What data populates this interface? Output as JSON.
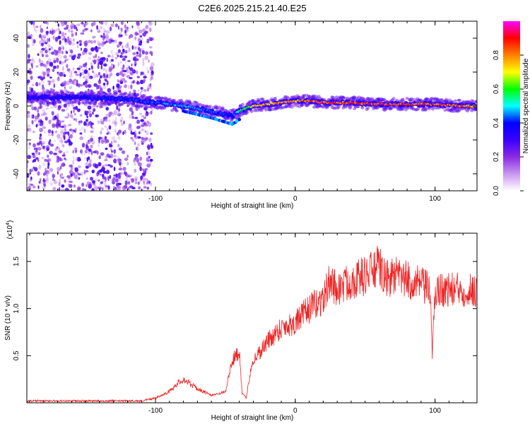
{
  "title": "C2E6.2025.215.21.40.E25",
  "chart_data": [
    {
      "type": "heatmap",
      "xlabel": "Height of straight line (km)",
      "ylabel": "Frequency (Hz)",
      "xlim": [
        -192,
        130
      ],
      "ylim": [
        -50,
        50
      ],
      "xticks": [
        -100,
        0,
        100
      ],
      "yticks": [
        -40,
        -20,
        0,
        20,
        40
      ],
      "colorbar": {
        "label": "Normalized spectral amplitude",
        "range": [
          0,
          1
        ],
        "ticks": [
          "0.0",
          "0.2",
          "0.4",
          "0.6",
          "0.8"
        ],
        "tick_values": [
          0,
          0.2,
          0.4,
          0.6,
          0.8
        ],
        "colors": [
          "#ffffff",
          "#c896f0",
          "#8a2be2",
          "#3a00ff",
          "#0000ff",
          "#00ffff",
          "#00ff00",
          "#ffff00",
          "#ff8000",
          "#ff0000",
          "#ff00ff"
        ]
      },
      "ridge": {
        "x": [
          -192,
          -150,
          -120,
          -100,
          -80,
          -60,
          -50,
          -45,
          -40,
          -30,
          -20,
          -10,
          0,
          10,
          20,
          40,
          60,
          80,
          100,
          120,
          130
        ],
        "freq": [
          5,
          5,
          4,
          2,
          0,
          -3,
          -5,
          -6,
          -3,
          0,
          1,
          2,
          3,
          3,
          2,
          2,
          1,
          1,
          1,
          0,
          0
        ],
        "amplitude": [
          0.35,
          0.4,
          0.42,
          0.45,
          0.5,
          0.45,
          0.42,
          0.4,
          0.55,
          0.75,
          0.85,
          0.8,
          0.82,
          0.85,
          0.9,
          0.88,
          0.9,
          0.92,
          0.9,
          0.85,
          0.8
        ]
      }
    },
    {
      "type": "line",
      "xlabel": "Height of straight line (km)",
      "ylabel": "SNR (10 * v/v)",
      "yscale_label": "(x10",
      "yscale_exp": "4",
      "xlim": [
        -192,
        130
      ],
      "ylim": [
        0,
        1.8
      ],
      "xticks": [
        -100,
        0,
        100
      ],
      "yticks": [
        0.5,
        1.0,
        1.5
      ],
      "ytick_labels": [
        "0.5",
        "1.0",
        "1.5"
      ],
      "line_color": "#ee2222",
      "series": [
        {
          "x": [
            -192,
            -150,
            -110,
            -100,
            -90,
            -85,
            -80,
            -75,
            -70,
            -60,
            -50,
            -45,
            -40,
            -38,
            -35,
            -32,
            -30,
            -25,
            -20,
            -10,
            0,
            10,
            20,
            25,
            30,
            40,
            50,
            55,
            60,
            65,
            70,
            80,
            90,
            95,
            97,
            98,
            100,
            110,
            120,
            130
          ],
          "y": [
            0.02,
            0.02,
            0.02,
            0.05,
            0.12,
            0.2,
            0.25,
            0.2,
            0.15,
            0.08,
            0.12,
            0.45,
            0.55,
            0.1,
            0.05,
            0.35,
            0.45,
            0.55,
            0.65,
            0.8,
            0.85,
            1.0,
            1.1,
            1.3,
            1.2,
            1.3,
            1.35,
            1.4,
            1.45,
            1.3,
            1.35,
            1.3,
            1.25,
            1.2,
            1.15,
            0.45,
            1.2,
            1.2,
            1.2,
            1.2
          ]
        }
      ]
    }
  ]
}
